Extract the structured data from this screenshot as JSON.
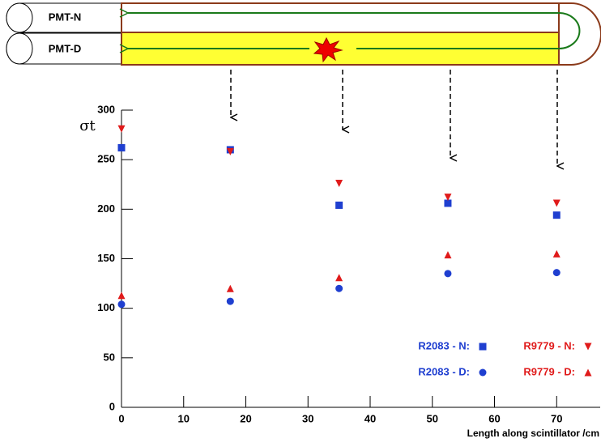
{
  "chart_data": {
    "type": "scatter",
    "diagram_labels": [
      "PMT-N",
      "PMT-D"
    ],
    "ylabel": "σt",
    "xlabel": "Length along scintillator /cm",
    "xlim": [
      0,
      77
    ],
    "ylim": [
      0,
      300
    ],
    "xticks": [
      0,
      10,
      20,
      30,
      40,
      50,
      60,
      70
    ],
    "yticks": [
      0,
      50,
      100,
      150,
      200,
      250,
      300
    ],
    "series": [
      {
        "name": "R2083 - N:",
        "color": "#1f3fd0",
        "marker": "square",
        "x": [
          0,
          17.5,
          35,
          52.5,
          70
        ],
        "values": [
          262,
          260,
          204,
          206,
          194
        ]
      },
      {
        "name": "R2083 - D:",
        "color": "#1f3fd0",
        "marker": "circle",
        "x": [
          0,
          17.5,
          35,
          52.5,
          70
        ],
        "values": [
          104,
          107,
          120,
          135,
          136
        ]
      },
      {
        "name": "R9779 - N:",
        "color": "#e01b1b",
        "marker": "triangle-down",
        "x": [
          0,
          17.5,
          35,
          52.5,
          70
        ],
        "values": [
          281,
          258,
          226,
          212,
          206
        ]
      },
      {
        "name": "R9779 - D:",
        "color": "#e01b1b",
        "marker": "triangle-up",
        "x": [
          0,
          17.5,
          35,
          52.5,
          70
        ],
        "values": [
          113,
          120,
          131,
          154,
          155
        ]
      }
    ]
  }
}
